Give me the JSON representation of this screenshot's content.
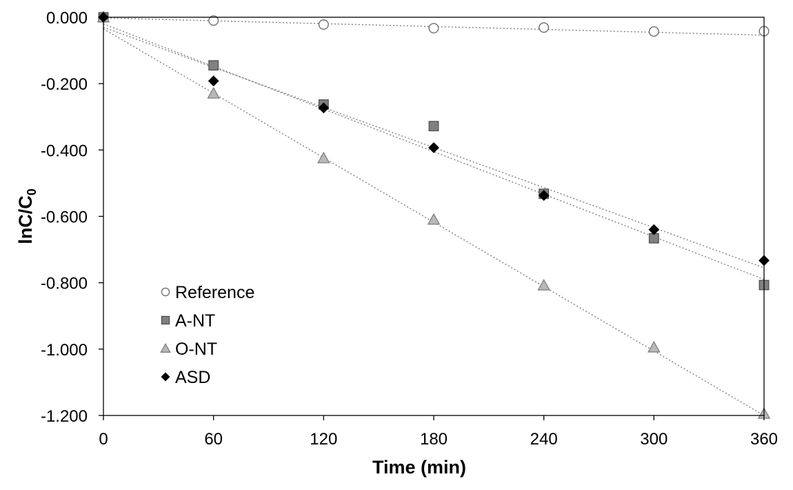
{
  "chart_data": {
    "type": "scatter",
    "title": "",
    "xlabel": "Time (min)",
    "ylabel": "lnC/C",
    "ylabel_subscript": "0",
    "xlim": [
      0,
      360
    ],
    "ylim": [
      -1.2,
      0
    ],
    "xticks": [
      "0",
      "60",
      "120",
      "180",
      "240",
      "300",
      "360"
    ],
    "xtick_values": [
      0,
      60,
      120,
      180,
      240,
      300,
      360
    ],
    "yticks": [
      "0.000",
      "-0.200",
      "-0.400",
      "-0.600",
      "-0.800",
      "-1.000",
      "-1.200"
    ],
    "ytick_values": [
      0,
      -0.2,
      -0.4,
      -0.6,
      -0.8,
      -1.0,
      -1.2
    ],
    "grid": false,
    "legend_position": "bottom-left",
    "series": [
      {
        "name": "Reference",
        "marker": "circle-open",
        "color": "#ffffff",
        "x": [
          0,
          60,
          120,
          180,
          240,
          300,
          360
        ],
        "y": [
          0.0,
          -0.01,
          -0.022,
          -0.033,
          -0.031,
          -0.043,
          -0.042
        ],
        "trend": [
          -0.002,
          -0.054
        ]
      },
      {
        "name": "A-NT",
        "marker": "square",
        "color": "#808080",
        "x": [
          0,
          60,
          120,
          180,
          240,
          300,
          360
        ],
        "y": [
          0.0,
          -0.145,
          -0.263,
          -0.328,
          -0.532,
          -0.666,
          -0.807
        ],
        "trend": [
          -0.02,
          -0.79
        ]
      },
      {
        "name": "O-NT",
        "marker": "triangle",
        "color": "#b3b3b3",
        "x": [
          0,
          60,
          120,
          180,
          240,
          300,
          360
        ],
        "y": [
          0.0,
          -0.23,
          -0.425,
          -0.61,
          -0.808,
          -0.995,
          -1.195
        ],
        "trend": [
          -0.035,
          -1.2
        ]
      },
      {
        "name": "ASD",
        "marker": "diamond",
        "color": "#000000",
        "x": [
          0,
          60,
          120,
          180,
          240,
          300,
          360
        ],
        "y": [
          0.0,
          -0.192,
          -0.273,
          -0.393,
          -0.537,
          -0.64,
          -0.733
        ],
        "trend": [
          -0.03,
          -0.755
        ]
      }
    ]
  }
}
